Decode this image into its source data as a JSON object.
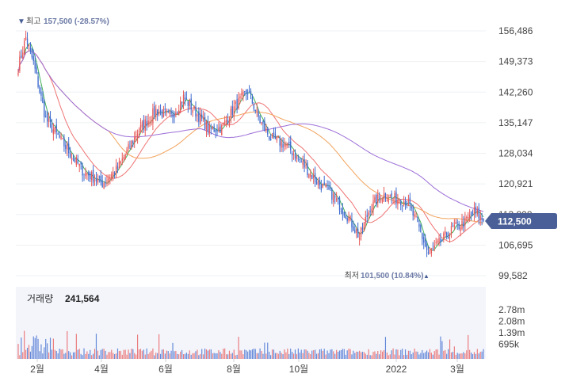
{
  "chart_data": {
    "type": "candlestick",
    "price_axis": {
      "ticks": [
        "156,486",
        "149,373",
        "142,260",
        "135,147",
        "128,034",
        "120,921",
        "113,808",
        "106,695",
        "99,582"
      ],
      "min": 99582,
      "max": 156486
    },
    "current_price_label": "112,500",
    "high_marker": {
      "prefix": "최고",
      "value": "157,500 (-28.57%)"
    },
    "low_marker": {
      "prefix": "최저",
      "value": "101,500 (10.84%)"
    },
    "volume_panel": {
      "label": "거래량",
      "value": "241,564",
      "ticks": [
        "2.78m",
        "2.08m",
        "1.39m",
        "695k"
      ]
    },
    "x_labels": [
      "2월",
      "4월",
      "6월",
      "8월",
      "10월",
      "2022",
      "3월"
    ],
    "key_points": [
      {
        "x": 0,
        "y": 148000
      },
      {
        "x": 5,
        "y": 155000
      },
      {
        "x": 10,
        "y": 149000
      },
      {
        "x": 18,
        "y": 136000
      },
      {
        "x": 30,
        "y": 130000
      },
      {
        "x": 42,
        "y": 124000
      },
      {
        "x": 55,
        "y": 121000
      },
      {
        "x": 65,
        "y": 124500
      },
      {
        "x": 78,
        "y": 133000
      },
      {
        "x": 90,
        "y": 138000
      },
      {
        "x": 100,
        "y": 136500
      },
      {
        "x": 108,
        "y": 141000
      },
      {
        "x": 115,
        "y": 138000
      },
      {
        "x": 125,
        "y": 133500
      },
      {
        "x": 133,
        "y": 134000
      },
      {
        "x": 142,
        "y": 139000
      },
      {
        "x": 150,
        "y": 142500
      },
      {
        "x": 158,
        "y": 135500
      },
      {
        "x": 165,
        "y": 131500
      },
      {
        "x": 175,
        "y": 130000
      },
      {
        "x": 185,
        "y": 126000
      },
      {
        "x": 195,
        "y": 121500
      },
      {
        "x": 205,
        "y": 118500
      },
      {
        "x": 215,
        "y": 113500
      },
      {
        "x": 223,
        "y": 108500
      },
      {
        "x": 230,
        "y": 115500
      },
      {
        "x": 238,
        "y": 118500
      },
      {
        "x": 246,
        "y": 117500
      },
      {
        "x": 254,
        "y": 117000
      },
      {
        "x": 262,
        "y": 110500
      },
      {
        "x": 268,
        "y": 104500
      },
      {
        "x": 276,
        "y": 107500
      },
      {
        "x": 284,
        "y": 110500
      },
      {
        "x": 292,
        "y": 112000
      },
      {
        "x": 298,
        "y": 114500
      },
      {
        "x": 304,
        "y": 112500
      }
    ],
    "series": [
      {
        "name": "",
        "type": "candle",
        "color_up": "#e85a5a",
        "color_down": "#3f6ccf"
      },
      {
        "name": "",
        "type": "ma",
        "window": 5,
        "color": "#3fae56"
      },
      {
        "name": "",
        "type": "ma",
        "window": 20,
        "color": "#ef7373"
      },
      {
        "name": "",
        "type": "ma",
        "window": 60,
        "color": "#f2a35c"
      },
      {
        "name": "",
        "type": "ma",
        "window": 120,
        "color": "#9c6ed8"
      }
    ]
  },
  "colors": {
    "up": "#e85a5a",
    "down": "#3f6ccf",
    "badge": "#4a5f97",
    "marker": "#6c7aa6",
    "grid": "#eef0f3",
    "axis_text": "#444444",
    "volume_bg": "#f3f5fb"
  }
}
